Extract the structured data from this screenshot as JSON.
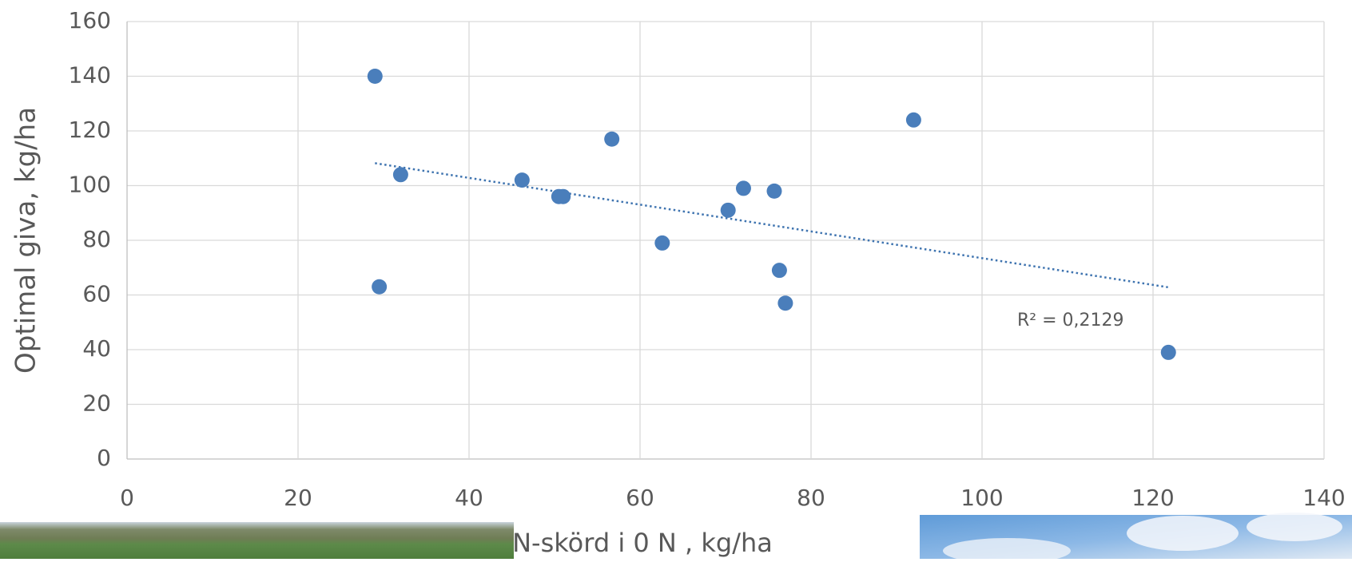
{
  "chart_data": {
    "type": "scatter",
    "x_label": "N-skörd i 0 N , kg/ha",
    "y_label": "Optimal giva, kg/ha",
    "x": [
      29,
      29.5,
      32,
      46.2,
      50.5,
      51,
      56.7,
      62.6,
      70.3,
      72.1,
      75.7,
      76.3,
      77,
      92,
      121.8
    ],
    "values": [
      140,
      63,
      104,
      102,
      96,
      96,
      117,
      79,
      91,
      99,
      98,
      69,
      57,
      124,
      39
    ],
    "color": "#4a7ebb",
    "trendline": {
      "x": [
        29,
        121.8
      ],
      "y": [
        108.2,
        62.8
      ],
      "color": "#3f74b0",
      "style": "dotted"
    },
    "annotation": "R² = 0,2129",
    "xlim": [
      0,
      140
    ],
    "xticks": [
      0,
      20,
      40,
      60,
      80,
      100,
      120,
      140
    ],
    "ylim": [
      0,
      160
    ],
    "yticks": [
      0,
      20,
      40,
      60,
      80,
      100,
      120,
      140,
      160
    ],
    "grid": true
  }
}
